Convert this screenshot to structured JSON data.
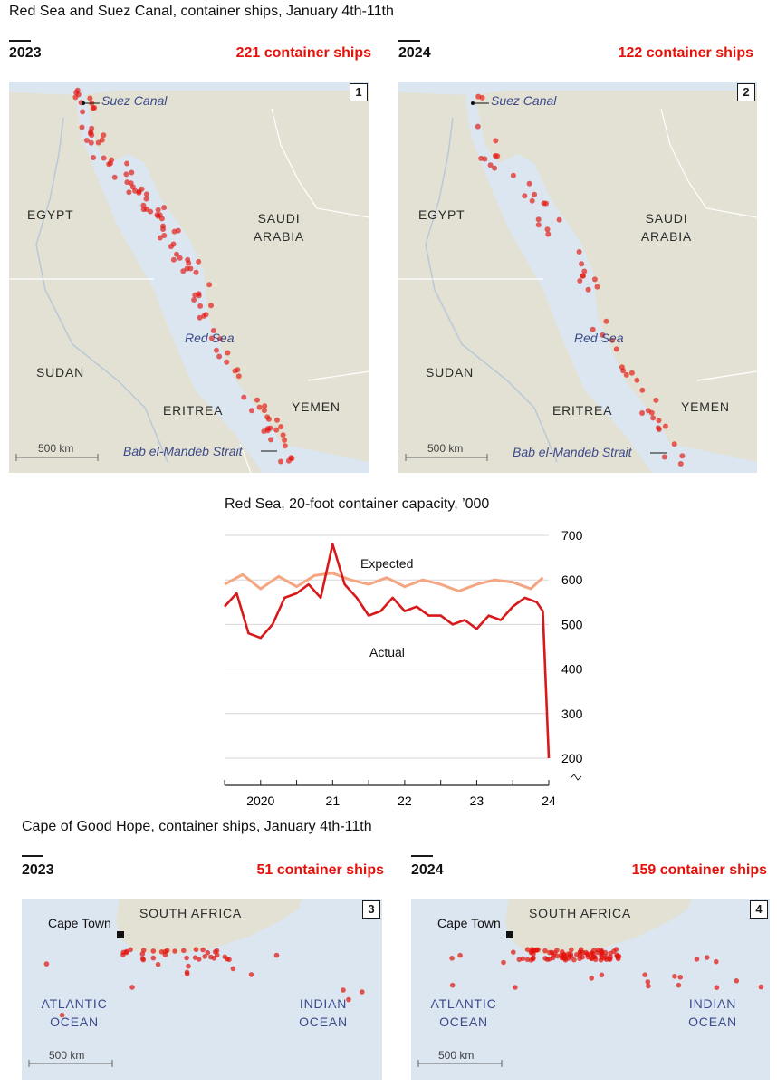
{
  "red_sea": {
    "title": "Red Sea and Suez Canal, container ships, January 4th-11th",
    "panels": [
      {
        "year": "2023",
        "count": "221 container ships",
        "badge": "1"
      },
      {
        "year": "2024",
        "count": "122 container ships",
        "badge": "2"
      }
    ],
    "labels": {
      "egypt": "EGYPT",
      "saudi_1": "SAUDI",
      "saudi_2": "ARABIA",
      "sudan": "SUDAN",
      "eritrea": "ERITREA",
      "yemen": "YEMEN",
      "suez": "Suez Canal",
      "red_sea": "Red Sea",
      "bab": "Bab el-Mandeb Strait",
      "scale": "500 km"
    }
  },
  "cape": {
    "title": "Cape of Good Hope, container ships, January 4th-11th",
    "panels": [
      {
        "year": "2023",
        "count": "51 container ships",
        "badge": "3"
      },
      {
        "year": "2024",
        "count": "159 container ships",
        "badge": "4"
      }
    ],
    "labels": {
      "south_africa": "SOUTH AFRICA",
      "cape_town": "Cape Town",
      "atlantic_1": "ATLANTIC",
      "atlantic_2": "OCEAN",
      "indian_1": "INDIAN",
      "indian_2": "OCEAN",
      "scale": "500 km"
    }
  },
  "colors": {
    "ship_dot": "#e3120b",
    "land": "#e3e1d3",
    "water": "#dbe6f0",
    "actual_line": "#d7191c",
    "expected_line": "#f4a582"
  },
  "chart_data": {
    "type": "line",
    "title": "Red Sea, 20-foot container capacity, ’000",
    "xlabel": "",
    "ylabel": "",
    "ylim": [
      200,
      700
    ],
    "yticks": [
      "700",
      "600",
      "500",
      "400",
      "300",
      "200"
    ],
    "xticks": [
      "2020",
      "21",
      "22",
      "23",
      "24"
    ],
    "x_range": [
      "2019-07",
      "2024-01"
    ],
    "series": [
      {
        "name": "Expected",
        "x": [
          "2019-07",
          "2019-10",
          "2020-01",
          "2020-04",
          "2020-07",
          "2020-10",
          "2021-01",
          "2021-04",
          "2021-07",
          "2021-10",
          "2022-01",
          "2022-04",
          "2022-07",
          "2022-10",
          "2023-01",
          "2023-04",
          "2023-07",
          "2023-10",
          "2023-12"
        ],
        "values": [
          590,
          612,
          580,
          608,
          585,
          610,
          615,
          600,
          590,
          605,
          585,
          600,
          590,
          575,
          590,
          600,
          595,
          580,
          605
        ]
      },
      {
        "name": "Actual",
        "x": [
          "2019-07",
          "2019-09",
          "2019-11",
          "2020-01",
          "2020-03",
          "2020-05",
          "2020-07",
          "2020-09",
          "2020-11",
          "2021-01",
          "2021-03",
          "2021-05",
          "2021-07",
          "2021-09",
          "2021-11",
          "2022-01",
          "2022-03",
          "2022-05",
          "2022-07",
          "2022-09",
          "2022-11",
          "2023-01",
          "2023-03",
          "2023-05",
          "2023-07",
          "2023-09",
          "2023-11",
          "2023-12",
          "2024-01"
        ],
        "values": [
          540,
          570,
          480,
          470,
          500,
          560,
          570,
          590,
          560,
          680,
          590,
          560,
          520,
          530,
          560,
          530,
          540,
          520,
          520,
          500,
          510,
          490,
          520,
          510,
          540,
          560,
          550,
          530,
          200
        ]
      }
    ]
  }
}
